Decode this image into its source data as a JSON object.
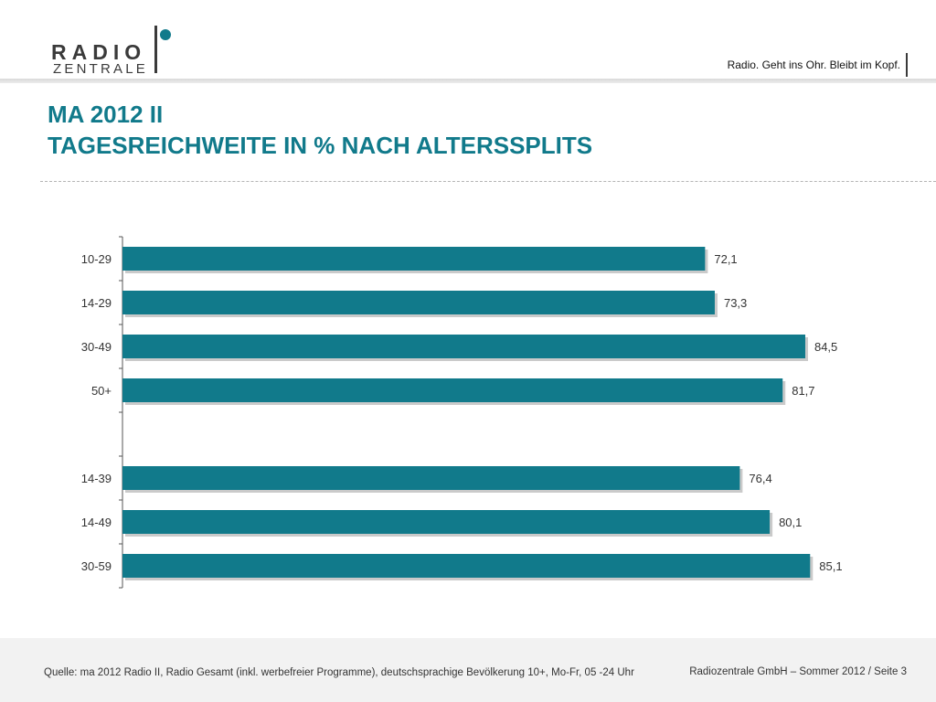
{
  "logo": {
    "word1": "RADIO",
    "word2": "ZENTRALE"
  },
  "tagline": "Radio. Geht ins Ohr. Bleibt im Kopf.",
  "title": {
    "line1": "MA 2012 II",
    "line2": "TAGESREICHWEITE IN % NACH ALTERSSPLITS"
  },
  "footer": {
    "source": "Quelle: ma 2012 Radio II, Radio Gesamt (inkl. werbefreier Programme), deutschsprachige Bevölkerung 10+, Mo-Fr, 05 -24 Uhr",
    "page": "Radiozentrale GmbH – Sommer 2012 / Seite 3"
  },
  "colors": {
    "accent": "#117a8b",
    "bar": "#117a8b",
    "text": "#333333"
  },
  "chart_data": {
    "type": "bar",
    "orientation": "horizontal",
    "title": "",
    "xlabel": "",
    "ylabel": "",
    "categories": [
      "10-29",
      "14-29",
      "30-49",
      "50+",
      "",
      "14-39",
      "14-49",
      "30-59"
    ],
    "values": [
      72.1,
      73.3,
      84.5,
      81.7,
      null,
      76.4,
      80.1,
      85.1
    ],
    "value_labels": [
      "72,1",
      "73,3",
      "84,5",
      "81,7",
      "",
      "76,4",
      "80,1",
      "85,1"
    ],
    "xlim": [
      0,
      100
    ],
    "grid": false,
    "legend": "none"
  }
}
